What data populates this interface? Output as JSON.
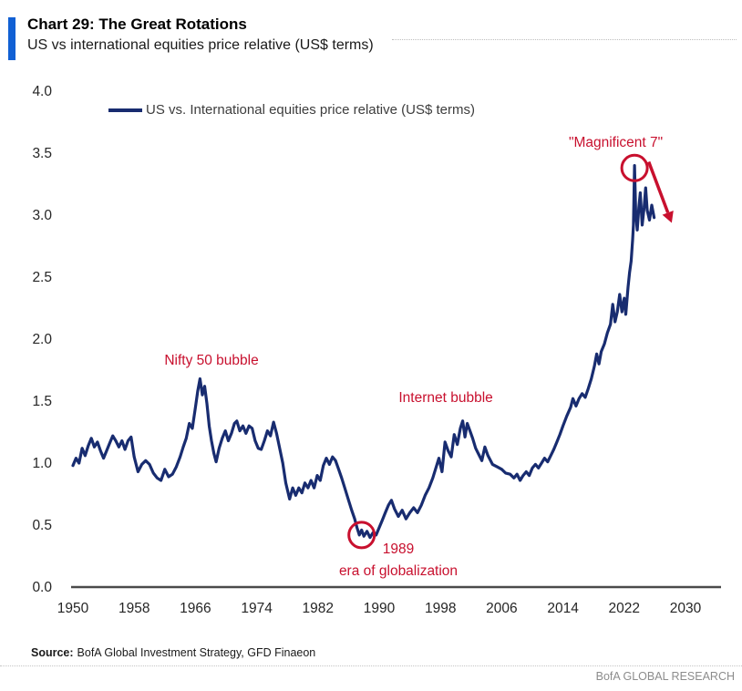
{
  "header": {
    "title": "Chart 29: The Great Rotations",
    "subtitle": "US vs international equities price relative (US$ terms)",
    "accent_color": "#1160d4"
  },
  "legend": {
    "label": "US vs. International equities price relative (US$ terms)"
  },
  "footer": {
    "source_label": "Source:",
    "source_text": "BofA Global Investment Strategy, GFD Finaeon",
    "brand": "BofA GLOBAL RESEARCH"
  },
  "chart_data": {
    "type": "line",
    "title": "Chart 29: The Great Rotations",
    "subtitle": "US vs international equities price relative (US$ terms)",
    "xlabel": "",
    "ylabel": "",
    "xlim": [
      1950,
      2034
    ],
    "ylim": [
      0,
      4
    ],
    "grid": false,
    "legend_position": "top-left",
    "x_ticks": [
      1950,
      1958,
      1966,
      1974,
      1982,
      1990,
      1998,
      2006,
      2014,
      2022,
      2030
    ],
    "y_ticks": [
      0,
      0.5,
      1,
      1.5,
      2,
      2.5,
      3,
      3.5,
      4
    ],
    "axis_color": "#4a4a4a",
    "tick_color": "#262626",
    "annotation_color": "#c8102e",
    "series": [
      {
        "name": "US vs. International equities price relative (US$ terms)",
        "color": "#182c70",
        "points": [
          [
            1950.0,
            0.98
          ],
          [
            1950.4,
            1.04
          ],
          [
            1950.8,
            1.0
          ],
          [
            1951.2,
            1.12
          ],
          [
            1951.6,
            1.06
          ],
          [
            1952.0,
            1.14
          ],
          [
            1952.4,
            1.2
          ],
          [
            1952.8,
            1.13
          ],
          [
            1953.2,
            1.17
          ],
          [
            1953.6,
            1.1
          ],
          [
            1954.0,
            1.04
          ],
          [
            1954.4,
            1.1
          ],
          [
            1954.8,
            1.16
          ],
          [
            1955.2,
            1.22
          ],
          [
            1955.6,
            1.18
          ],
          [
            1956.0,
            1.13
          ],
          [
            1956.4,
            1.18
          ],
          [
            1956.8,
            1.11
          ],
          [
            1957.2,
            1.18
          ],
          [
            1957.6,
            1.21
          ],
          [
            1958.0,
            1.05
          ],
          [
            1958.5,
            0.93
          ],
          [
            1959.0,
            0.99
          ],
          [
            1959.5,
            1.02
          ],
          [
            1960.0,
            0.99
          ],
          [
            1960.5,
            0.92
          ],
          [
            1961.0,
            0.88
          ],
          [
            1961.5,
            0.86
          ],
          [
            1962.0,
            0.95
          ],
          [
            1962.5,
            0.89
          ],
          [
            1963.0,
            0.91
          ],
          [
            1963.5,
            0.97
          ],
          [
            1964.0,
            1.05
          ],
          [
            1964.4,
            1.13
          ],
          [
            1964.8,
            1.2
          ],
          [
            1965.2,
            1.32
          ],
          [
            1965.6,
            1.28
          ],
          [
            1966.0,
            1.45
          ],
          [
            1966.3,
            1.58
          ],
          [
            1966.6,
            1.68
          ],
          [
            1966.9,
            1.55
          ],
          [
            1967.2,
            1.62
          ],
          [
            1967.5,
            1.48
          ],
          [
            1967.8,
            1.3
          ],
          [
            1968.1,
            1.18
          ],
          [
            1968.4,
            1.08
          ],
          [
            1968.7,
            1.01
          ],
          [
            1969.1,
            1.12
          ],
          [
            1969.5,
            1.2
          ],
          [
            1969.9,
            1.26
          ],
          [
            1970.3,
            1.18
          ],
          [
            1970.7,
            1.24
          ],
          [
            1971.1,
            1.32
          ],
          [
            1971.4,
            1.34
          ],
          [
            1971.8,
            1.26
          ],
          [
            1972.2,
            1.3
          ],
          [
            1972.6,
            1.24
          ],
          [
            1973.0,
            1.3
          ],
          [
            1973.4,
            1.28
          ],
          [
            1973.8,
            1.18
          ],
          [
            1974.2,
            1.12
          ],
          [
            1974.6,
            1.11
          ],
          [
            1975.0,
            1.18
          ],
          [
            1975.4,
            1.26
          ],
          [
            1975.8,
            1.22
          ],
          [
            1976.2,
            1.33
          ],
          [
            1976.6,
            1.24
          ],
          [
            1977.0,
            1.12
          ],
          [
            1977.4,
            1.0
          ],
          [
            1977.8,
            0.84
          ],
          [
            1978.3,
            0.71
          ],
          [
            1978.7,
            0.8
          ],
          [
            1979.1,
            0.74
          ],
          [
            1979.5,
            0.8
          ],
          [
            1979.9,
            0.76
          ],
          [
            1980.3,
            0.84
          ],
          [
            1980.7,
            0.8
          ],
          [
            1981.1,
            0.86
          ],
          [
            1981.5,
            0.8
          ],
          [
            1981.9,
            0.9
          ],
          [
            1982.3,
            0.86
          ],
          [
            1982.7,
            0.98
          ],
          [
            1983.1,
            1.04
          ],
          [
            1983.5,
            0.99
          ],
          [
            1983.9,
            1.05
          ],
          [
            1984.3,
            1.02
          ],
          [
            1984.7,
            0.95
          ],
          [
            1985.1,
            0.88
          ],
          [
            1985.5,
            0.8
          ],
          [
            1986.0,
            0.7
          ],
          [
            1986.4,
            0.62
          ],
          [
            1986.8,
            0.55
          ],
          [
            1987.1,
            0.48
          ],
          [
            1987.4,
            0.42
          ],
          [
            1987.7,
            0.46
          ],
          [
            1988.0,
            0.41
          ],
          [
            1988.4,
            0.45
          ],
          [
            1988.8,
            0.4
          ],
          [
            1989.2,
            0.44
          ],
          [
            1989.6,
            0.42
          ],
          [
            1990.0,
            0.48
          ],
          [
            1990.4,
            0.54
          ],
          [
            1990.8,
            0.6
          ],
          [
            1991.2,
            0.66
          ],
          [
            1991.6,
            0.7
          ],
          [
            1992.0,
            0.63
          ],
          [
            1992.5,
            0.57
          ],
          [
            1993.0,
            0.62
          ],
          [
            1993.5,
            0.55
          ],
          [
            1994.0,
            0.6
          ],
          [
            1994.5,
            0.64
          ],
          [
            1995.0,
            0.6
          ],
          [
            1995.5,
            0.66
          ],
          [
            1996.0,
            0.74
          ],
          [
            1996.5,
            0.8
          ],
          [
            1997.0,
            0.88
          ],
          [
            1997.5,
            0.98
          ],
          [
            1997.8,
            1.04
          ],
          [
            1998.2,
            0.93
          ],
          [
            1998.6,
            1.17
          ],
          [
            1999.0,
            1.1
          ],
          [
            1999.4,
            1.05
          ],
          [
            1999.8,
            1.23
          ],
          [
            2000.2,
            1.15
          ],
          [
            2000.6,
            1.28
          ],
          [
            2000.9,
            1.34
          ],
          [
            2001.2,
            1.21
          ],
          [
            2001.5,
            1.32
          ],
          [
            2001.8,
            1.27
          ],
          [
            2002.2,
            1.2
          ],
          [
            2002.6,
            1.12
          ],
          [
            2003.0,
            1.07
          ],
          [
            2003.4,
            1.02
          ],
          [
            2003.8,
            1.13
          ],
          [
            2004.2,
            1.06
          ],
          [
            2004.8,
            0.99
          ],
          [
            2005.4,
            0.97
          ],
          [
            2006.0,
            0.95
          ],
          [
            2006.5,
            0.92
          ],
          [
            2007.1,
            0.91
          ],
          [
            2007.6,
            0.88
          ],
          [
            2008.0,
            0.91
          ],
          [
            2008.4,
            0.86
          ],
          [
            2008.8,
            0.9
          ],
          [
            2009.2,
            0.93
          ],
          [
            2009.6,
            0.9
          ],
          [
            2010.0,
            0.96
          ],
          [
            2010.4,
            0.99
          ],
          [
            2010.8,
            0.96
          ],
          [
            2011.2,
            1.0
          ],
          [
            2011.6,
            1.04
          ],
          [
            2012.0,
            1.01
          ],
          [
            2012.4,
            1.06
          ],
          [
            2012.8,
            1.11
          ],
          [
            2013.2,
            1.17
          ],
          [
            2013.6,
            1.23
          ],
          [
            2014.0,
            1.3
          ],
          [
            2014.5,
            1.38
          ],
          [
            2015.0,
            1.45
          ],
          [
            2015.3,
            1.52
          ],
          [
            2015.7,
            1.46
          ],
          [
            2016.1,
            1.52
          ],
          [
            2016.5,
            1.56
          ],
          [
            2016.9,
            1.53
          ],
          [
            2017.3,
            1.6
          ],
          [
            2017.7,
            1.68
          ],
          [
            2018.1,
            1.78
          ],
          [
            2018.4,
            1.88
          ],
          [
            2018.7,
            1.8
          ],
          [
            2019.0,
            1.9
          ],
          [
            2019.4,
            1.96
          ],
          [
            2019.8,
            2.05
          ],
          [
            2020.2,
            2.12
          ],
          [
            2020.5,
            2.28
          ],
          [
            2020.8,
            2.14
          ],
          [
            2021.1,
            2.22
          ],
          [
            2021.4,
            2.36
          ],
          [
            2021.7,
            2.22
          ],
          [
            2022.0,
            2.33
          ],
          [
            2022.2,
            2.2
          ],
          [
            2022.5,
            2.42
          ],
          [
            2022.7,
            2.54
          ],
          [
            2022.9,
            2.63
          ],
          [
            2023.1,
            2.8
          ],
          [
            2023.2,
            2.92
          ],
          [
            2023.35,
            3.4
          ],
          [
            2023.5,
            3.02
          ],
          [
            2023.7,
            2.88
          ],
          [
            2023.9,
            3.06
          ],
          [
            2024.1,
            3.18
          ],
          [
            2024.35,
            2.92
          ],
          [
            2024.6,
            3.06
          ],
          [
            2024.8,
            3.22
          ],
          [
            2025.0,
            3.04
          ],
          [
            2025.3,
            2.96
          ],
          [
            2025.6,
            3.08
          ],
          [
            2025.9,
            2.98
          ]
        ]
      }
    ],
    "annotations": [
      {
        "id": "nifty-50-bubble",
        "text": "Nifty 50 bubble",
        "x": 1968.1,
        "y": 1.82
      },
      {
        "id": "internet-bubble",
        "text": "Internet bubble",
        "x": 1998.7,
        "y": 1.52
      },
      {
        "id": "magnificent-7",
        "text": "\"Magnificent 7\"",
        "x": 2020.9,
        "y": 3.58
      },
      {
        "id": "year-1989",
        "text": "1989",
        "x": 1992.5,
        "y": 0.3
      },
      {
        "id": "era-of-globalization",
        "text": "era of globalization",
        "x": 1992.5,
        "y": 0.125
      }
    ],
    "circles": [
      {
        "id": "1989-trough",
        "x": 1987.7,
        "y": 0.42,
        "r": 14
      },
      {
        "id": "magnificent-7-peak",
        "x": 2023.35,
        "y": 3.38,
        "r": 14
      }
    ],
    "arrow": {
      "from": [
        2025.2,
        3.43
      ],
      "to": [
        2027.7,
        3.02
      ]
    }
  }
}
